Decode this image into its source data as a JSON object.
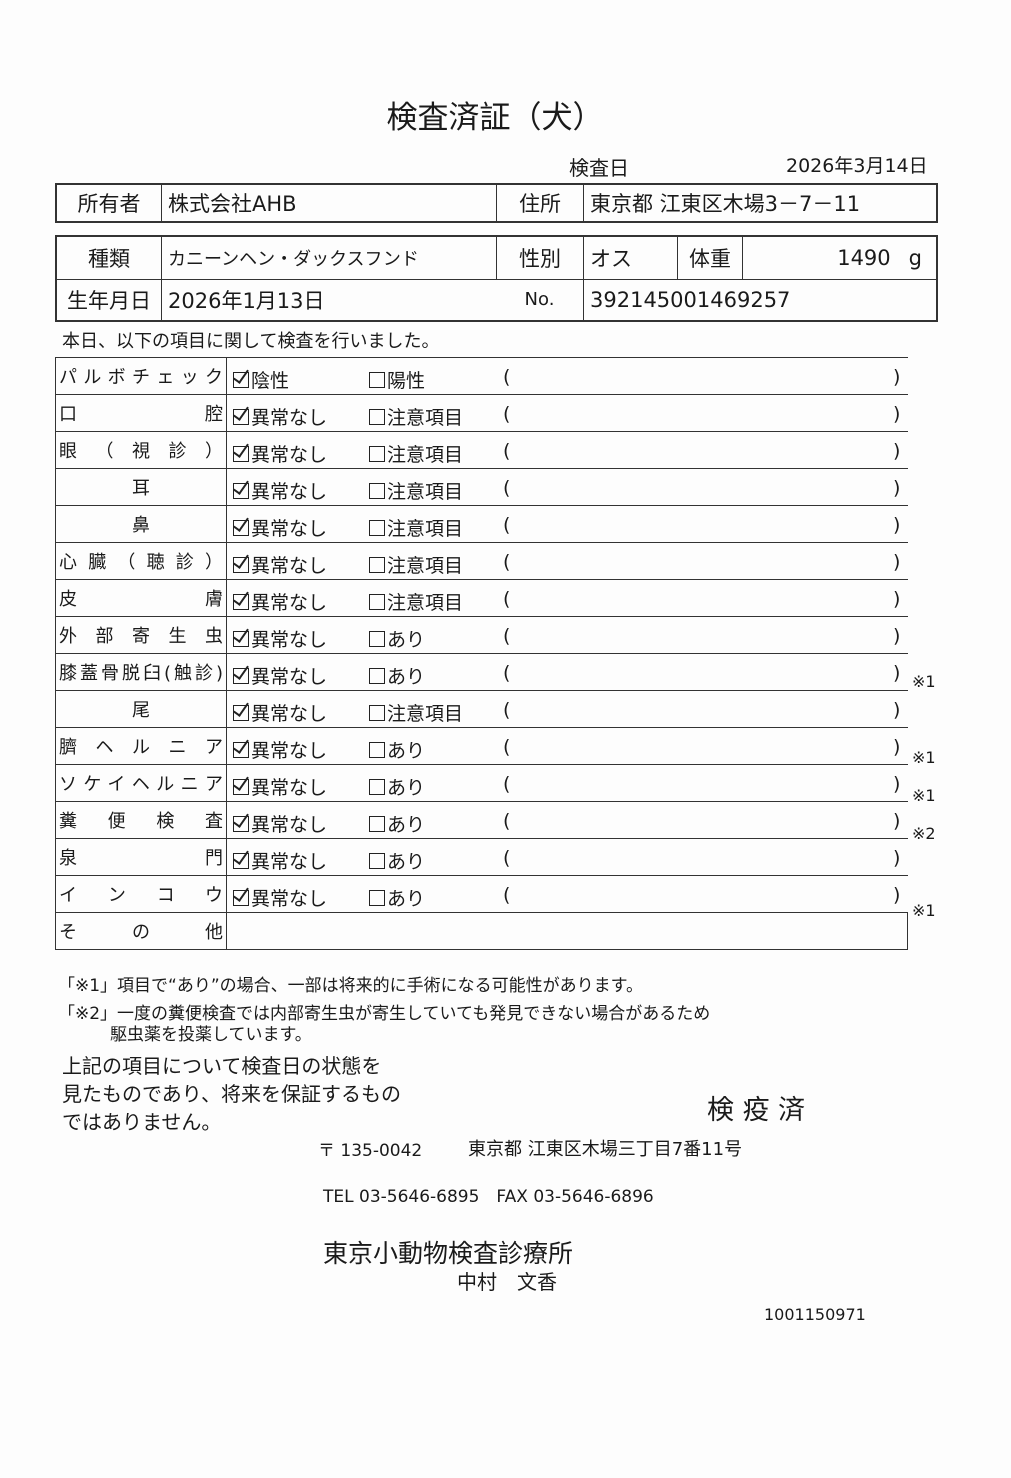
{
  "title": "検査済証（犬）",
  "exam_date": {
    "label": "検査日",
    "value": "2026年3月14日"
  },
  "owner": {
    "label": "所有者",
    "value": "株式会社AHB",
    "address_label": "住所",
    "address": "東京都 江東区木場3－7－11"
  },
  "pet": {
    "breed_label": "種類",
    "breed": "カニーンヘン・ダックスフンド",
    "sex_label": "性別",
    "sex": "オス",
    "weight_label": "体重",
    "weight": "1490",
    "weight_unit": "g",
    "birth_label": "生年月日",
    "birth": "2026年1月13日",
    "no_label": "No.",
    "no": "392145001469257"
  },
  "intro": "本日、以下の項目に関して検査を行いました。",
  "rows": [
    {
      "label": "パルボチェック",
      "ok": "陰性",
      "ng": "陽性",
      "checked": "ok",
      "note": ""
    },
    {
      "label": "口　　　　腔",
      "ok": "異常なし",
      "ng": "注意項目",
      "checked": "ok",
      "note": ""
    },
    {
      "label": "眼（視診）",
      "ok": "異常なし",
      "ng": "注意項目",
      "checked": "ok",
      "note": ""
    },
    {
      "label": "耳",
      "ok": "異常なし",
      "ng": "注意項目",
      "checked": "ok",
      "note": "",
      "center": true
    },
    {
      "label": "鼻",
      "ok": "異常なし",
      "ng": "注意項目",
      "checked": "ok",
      "note": "",
      "center": true
    },
    {
      "label": "心臓（聴診）",
      "ok": "異常なし",
      "ng": "注意項目",
      "checked": "ok",
      "note": ""
    },
    {
      "label": "皮　　　　膚",
      "ok": "異常なし",
      "ng": "注意項目",
      "checked": "ok",
      "note": ""
    },
    {
      "label": "外部寄生虫",
      "ok": "異常なし",
      "ng": "あり",
      "checked": "ok",
      "note": ""
    },
    {
      "label": "膝蓋骨脱臼(触診)",
      "ok": "異常なし",
      "ng": "あり",
      "checked": "ok",
      "note": "※1"
    },
    {
      "label": "尾",
      "ok": "異常なし",
      "ng": "注意項目",
      "checked": "ok",
      "note": "",
      "center": true
    },
    {
      "label": "臍ヘルニア",
      "ok": "異常なし",
      "ng": "あり",
      "checked": "ok",
      "note": "※1"
    },
    {
      "label": "ソケイヘルニア",
      "ok": "異常なし",
      "ng": "あり",
      "checked": "ok",
      "note": "※1"
    },
    {
      "label": "糞便検査",
      "ok": "異常なし",
      "ng": "あり",
      "checked": "ok",
      "note": "※2"
    },
    {
      "label": "泉　　　　門",
      "ok": "異常なし",
      "ng": "あり",
      "checked": "ok",
      "note": ""
    },
    {
      "label": "インコウ",
      "ok": "異常なし",
      "ng": "あり",
      "checked": "ok",
      "note": "※1"
    }
  ],
  "other_label": "その他",
  "paren_open": "(",
  "paren_close": ")",
  "footnote1": "「※1」項目で“あり”の場合、一部は将来的に手術になる可能性があります。",
  "footnote2a": "「※2」一度の糞便検査では内部寄生虫が寄生していても発見できない場合があるため",
  "footnote2b": "駆虫薬を投薬しています。",
  "disclaimer": [
    "上記の項目について検査日の状態を",
    "見たものであり、将来を保証するもの",
    "ではありません。"
  ],
  "stamp": "検 疫 済",
  "postal": "〒 135-0042",
  "clinic_address": "東京都 江東区木場三丁目7番11号",
  "tel_fax": "TEL 03-5646-6895　FAX 03-5646-6896",
  "clinic_name": "東京小動物検査診療所",
  "doctor": "中村　文香",
  "serial": "1001150971"
}
